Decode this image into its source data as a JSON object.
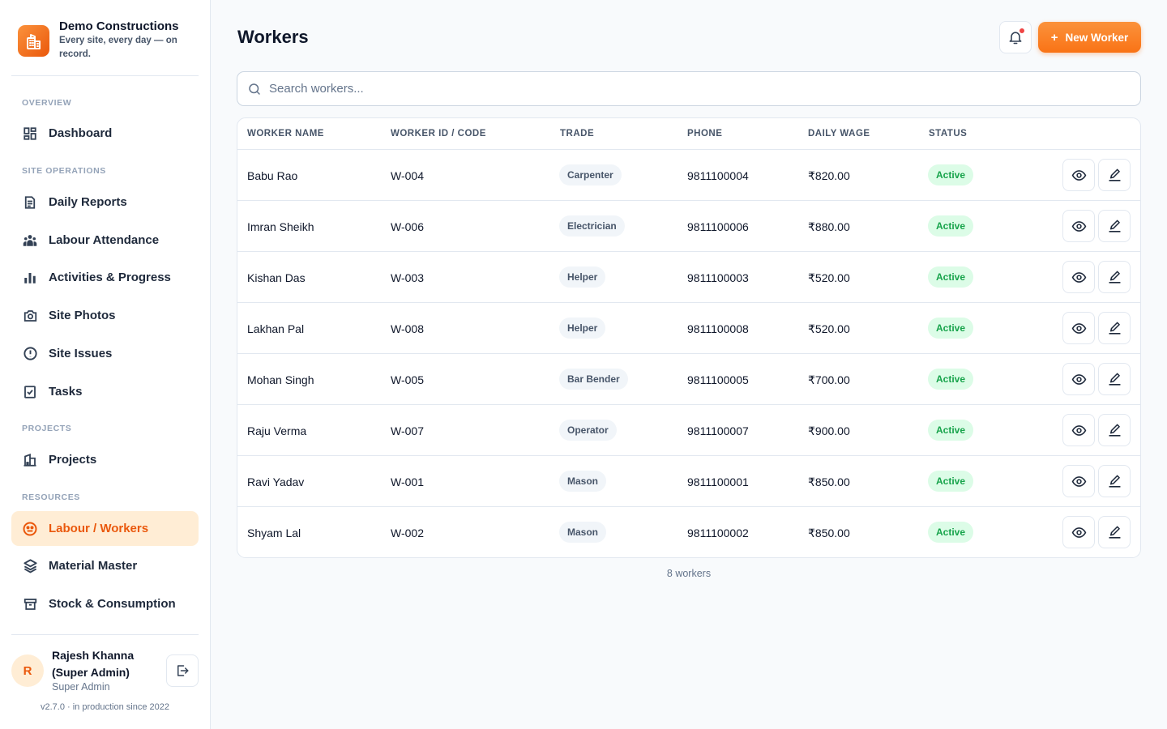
{
  "brand": {
    "name": "Demo Constructions",
    "tagline": "Every site, every day — on record."
  },
  "nav": {
    "sections": {
      "overview": "OVERVIEW",
      "site_operations": "SITE OPERATIONS",
      "projects": "PROJECTS",
      "resources": "RESOURCES"
    },
    "items": {
      "dashboard": "Dashboard",
      "daily_reports": "Daily Reports",
      "labour_attendance": "Labour Attendance",
      "activities": "Activities & Progress",
      "site_photos": "Site Photos",
      "site_issues": "Site Issues",
      "tasks": "Tasks",
      "projects": "Projects",
      "labour_workers": "Labour / Workers",
      "material_master": "Material Master",
      "stock": "Stock & Consumption"
    }
  },
  "user": {
    "initial": "R",
    "name": "Rajesh Khanna (Super Admin)",
    "role": "Super Admin"
  },
  "version": "v2.7.0 · in production since 2022",
  "header": {
    "title": "Workers",
    "new_button": "New Worker"
  },
  "search": {
    "placeholder": "Search workers...",
    "value": ""
  },
  "table": {
    "columns": [
      "WORKER NAME",
      "WORKER ID / CODE",
      "TRADE",
      "PHONE",
      "DAILY WAGE",
      "STATUS"
    ],
    "rows": [
      {
        "name": "Babu Rao",
        "code": "W-004",
        "trade": "Carpenter",
        "phone": "9811100004",
        "wage": "₹820.00",
        "status": "Active"
      },
      {
        "name": "Imran Sheikh",
        "code": "W-006",
        "trade": "Electrician",
        "phone": "9811100006",
        "wage": "₹880.00",
        "status": "Active"
      },
      {
        "name": "Kishan Das",
        "code": "W-003",
        "trade": "Helper",
        "phone": "9811100003",
        "wage": "₹520.00",
        "status": "Active"
      },
      {
        "name": "Lakhan Pal",
        "code": "W-008",
        "trade": "Helper",
        "phone": "9811100008",
        "wage": "₹520.00",
        "status": "Active"
      },
      {
        "name": "Mohan Singh",
        "code": "W-005",
        "trade": "Bar Bender",
        "phone": "9811100005",
        "wage": "₹700.00",
        "status": "Active"
      },
      {
        "name": "Raju Verma",
        "code": "W-007",
        "trade": "Operator",
        "phone": "9811100007",
        "wage": "₹900.00",
        "status": "Active"
      },
      {
        "name": "Ravi Yadav",
        "code": "W-001",
        "trade": "Mason",
        "phone": "9811100001",
        "wage": "₹850.00",
        "status": "Active"
      },
      {
        "name": "Shyam Lal",
        "code": "W-002",
        "trade": "Mason",
        "phone": "9811100002",
        "wage": "₹850.00",
        "status": "Active"
      }
    ]
  },
  "footer_count": "8 workers",
  "colors": {
    "accent": "#f97316",
    "accent_bg": "#ffedd5",
    "active_badge_bg": "#dcfce7",
    "active_badge_text": "#16a34a"
  }
}
